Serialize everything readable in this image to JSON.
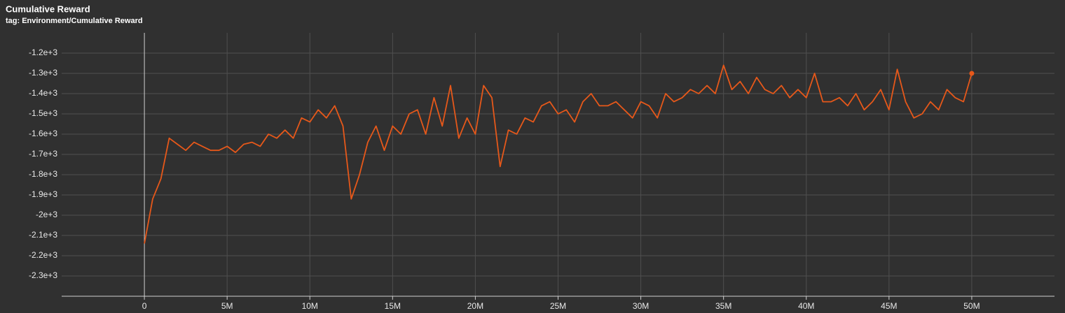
{
  "chart_data": {
    "type": "line",
    "title": "Cumulative Reward",
    "subtitle": "tag: Environment/Cumulative Reward",
    "x": [
      0,
      500000,
      1000000,
      1500000,
      2000000,
      2500000,
      3000000,
      3500000,
      4000000,
      4500000,
      5000000,
      5500000,
      6000000,
      6500000,
      7000000,
      7500000,
      8000000,
      8500000,
      9000000,
      9500000,
      10000000,
      10500000,
      11000000,
      11500000,
      12000000,
      12500000,
      13000000,
      13500000,
      14000000,
      14500000,
      15000000,
      15500000,
      16000000,
      16500000,
      17000000,
      17500000,
      18000000,
      18500000,
      19000000,
      19500000,
      20000000,
      20500000,
      21000000,
      21500000,
      22000000,
      22500000,
      23000000,
      23500000,
      24000000,
      24500000,
      25000000,
      25500000,
      26000000,
      26500000,
      27000000,
      27500000,
      28000000,
      28500000,
      29000000,
      29500000,
      30000000,
      30500000,
      31000000,
      31500000,
      32000000,
      32500000,
      33000000,
      33500000,
      34000000,
      34500000,
      35000000,
      35500000,
      36000000,
      36500000,
      37000000,
      37500000,
      38000000,
      38500000,
      39000000,
      39500000,
      40000000,
      40500000,
      41000000,
      41500000,
      42000000,
      42500000,
      43000000,
      43500000,
      44000000,
      44500000,
      45000000,
      45500000,
      46000000,
      46500000,
      47000000,
      47500000,
      48000000,
      48500000,
      49000000,
      49500000,
      50000000
    ],
    "values": [
      -2140,
      -1920,
      -1820,
      -1620,
      -1650,
      -1680,
      -1640,
      -1660,
      -1680,
      -1680,
      -1660,
      -1690,
      -1650,
      -1640,
      -1660,
      -1600,
      -1620,
      -1580,
      -1620,
      -1520,
      -1540,
      -1480,
      -1520,
      -1460,
      -1560,
      -1920,
      -1800,
      -1640,
      -1560,
      -1680,
      -1560,
      -1600,
      -1500,
      -1480,
      -1600,
      -1420,
      -1560,
      -1360,
      -1620,
      -1520,
      -1600,
      -1360,
      -1420,
      -1760,
      -1580,
      -1600,
      -1520,
      -1540,
      -1460,
      -1440,
      -1500,
      -1480,
      -1540,
      -1440,
      -1400,
      -1460,
      -1460,
      -1440,
      -1480,
      -1520,
      -1440,
      -1460,
      -1520,
      -1400,
      -1440,
      -1420,
      -1380,
      -1400,
      -1360,
      -1400,
      -1260,
      -1380,
      -1340,
      -1400,
      -1320,
      -1380,
      -1400,
      -1360,
      -1420,
      -1380,
      -1420,
      -1300,
      -1440,
      -1440,
      -1420,
      -1460,
      -1400,
      -1480,
      -1440,
      -1380,
      -1480,
      -1280,
      -1440,
      -1520,
      -1500,
      -1440,
      -1480,
      -1380,
      -1420,
      -1440,
      -1300
    ],
    "color": "#e6581a",
    "xlim": [
      -5000000,
      55000000
    ],
    "xticks": [
      0,
      {
        "value": 5000000,
        "label": "5M"
      },
      {
        "value": 10000000,
        "label": "10M"
      },
      {
        "value": 15000000,
        "label": "15M"
      },
      {
        "value": 20000000,
        "label": "20M"
      },
      {
        "value": 25000000,
        "label": "25M"
      },
      {
        "value": 30000000,
        "label": "30M"
      },
      {
        "value": 35000000,
        "label": "35M"
      },
      {
        "value": 40000000,
        "label": "40M"
      },
      {
        "value": 45000000,
        "label": "45M"
      },
      {
        "value": 50000000,
        "label": "50M"
      }
    ],
    "ylim": [
      -2400,
      -1100
    ],
    "yticks": [
      {
        "value": -1200,
        "label": "-1.2e+3"
      },
      {
        "value": -1300,
        "label": "-1.3e+3"
      },
      {
        "value": -1400,
        "label": "-1.4e+3"
      },
      {
        "value": -1500,
        "label": "-1.5e+3"
      },
      {
        "value": -1600,
        "label": "-1.6e+3"
      },
      {
        "value": -1700,
        "label": "-1.7e+3"
      },
      {
        "value": -1800,
        "label": "-1.8e+3"
      },
      {
        "value": -1900,
        "label": "-1.9e+3"
      },
      {
        "value": -2000,
        "label": "-2e+3"
      },
      {
        "value": -2100,
        "label": "-2.1e+3"
      },
      {
        "value": -2200,
        "label": "-2.2e+3"
      },
      {
        "value": -2300,
        "label": "-2.3e+3"
      }
    ],
    "grid": true
  }
}
